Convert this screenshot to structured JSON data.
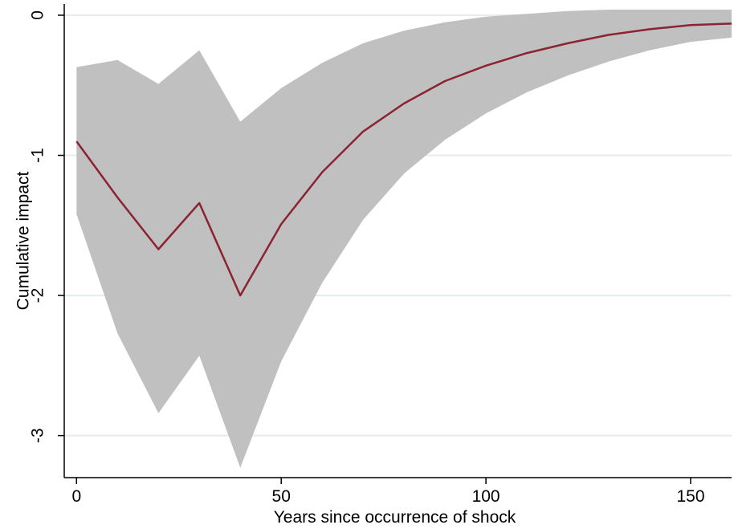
{
  "chart_data": {
    "type": "area",
    "title": "",
    "xlabel": "Years since occurrence of shock",
    "ylabel": "Cumulative impact",
    "xlim": [
      -3,
      160
    ],
    "ylim": [
      -3.3,
      0.08
    ],
    "x_ticks": [
      0,
      50,
      100,
      150
    ],
    "x_tick_labels": [
      "0",
      "50",
      "100",
      "150"
    ],
    "y_ticks": [
      0,
      -1,
      -2,
      -3
    ],
    "y_tick_labels": [
      "0",
      "-1",
      "-2",
      "-3"
    ],
    "grid": "horizontal",
    "legend": "none",
    "colors": {
      "line": "#8b2332",
      "band": "#c0c0c0",
      "grid": "#e4ecec",
      "axis": "#000000"
    },
    "series": [
      {
        "kind": "line",
        "x": [
          0,
          10,
          20,
          30,
          40,
          50,
          60,
          70,
          80,
          90,
          100,
          110,
          120,
          130,
          140,
          150,
          160
        ],
        "y": [
          -0.9,
          -1.3,
          -1.67,
          -1.34,
          -2.0,
          -1.49,
          -1.12,
          -0.83,
          -0.63,
          -0.47,
          -0.36,
          -0.27,
          -0.2,
          -0.14,
          -0.1,
          -0.07,
          -0.06
        ]
      },
      {
        "kind": "band",
        "x": [
          0,
          10,
          20,
          30,
          40,
          50,
          60,
          70,
          80,
          90,
          100,
          110,
          120,
          130,
          140,
          150,
          160
        ],
        "upper": [
          -0.37,
          -0.32,
          -0.49,
          -0.25,
          -0.76,
          -0.52,
          -0.34,
          -0.2,
          -0.11,
          -0.05,
          -0.01,
          0.01,
          0.03,
          0.04,
          0.04,
          0.04,
          0.04
        ],
        "lower": [
          -1.42,
          -2.27,
          -2.84,
          -2.43,
          -3.23,
          -2.47,
          -1.91,
          -1.46,
          -1.13,
          -0.89,
          -0.7,
          -0.55,
          -0.43,
          -0.33,
          -0.25,
          -0.19,
          -0.16
        ]
      }
    ]
  }
}
